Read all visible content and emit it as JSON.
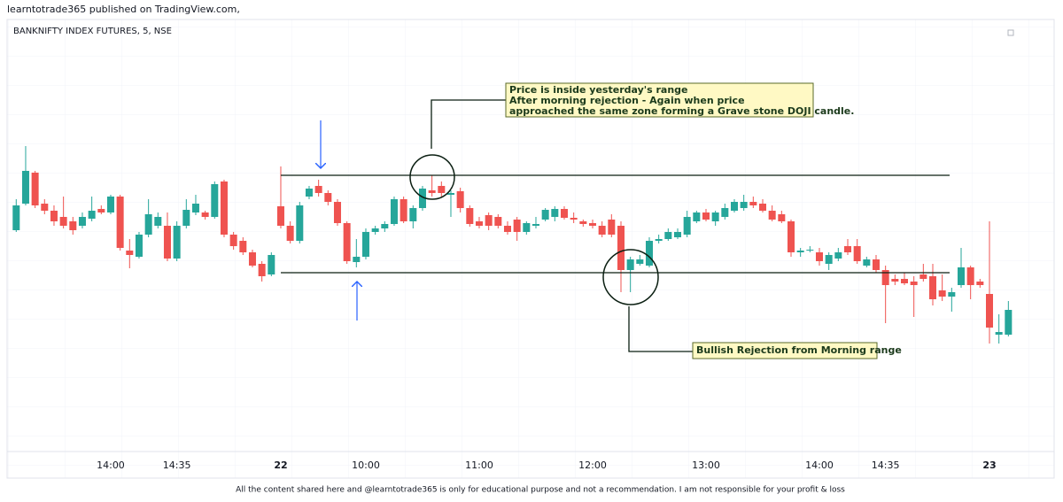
{
  "header": "learntotrade365 published on TradingView.com,",
  "footer": "All the content shared here and @learntotrade365 is only for educational purpose and not a recommendation. I am not responsible for your profit & loss",
  "chart_data": {
    "type": "candlestick",
    "title": "BANKNIFTY INDEX FUTURES, 5, NSE",
    "up_color": "#26a69a",
    "down_color": "#ef5350",
    "ylim": [
      -10,
      460
    ],
    "annotations": [
      [
        "Price is inside yesterday's range",
        "After morning rejection - Again when price",
        "approached the same zone forming a Grave stone DOJI candle."
      ],
      [
        "Bullish Rejection from Morning range"
      ]
    ],
    "categories": [
      null,
      null,
      null,
      null,
      null,
      null,
      null,
      null,
      null,
      null,
      "14:00",
      null,
      null,
      null,
      null,
      null,
      null,
      "14:35",
      null,
      null,
      null,
      null,
      null,
      null,
      null,
      null,
      null,
      null,
      "22",
      null,
      null,
      null,
      null,
      null,
      null,
      null,
      null,
      "10:00",
      null,
      null,
      null,
      null,
      null,
      null,
      null,
      null,
      null,
      null,
      null,
      "11:00",
      null,
      null,
      null,
      null,
      null,
      null,
      null,
      null,
      null,
      null,
      null,
      "12:00",
      null,
      null,
      null,
      null,
      null,
      null,
      null,
      null,
      null,
      null,
      null,
      "13:00",
      null,
      null,
      null,
      null,
      null,
      null,
      null,
      null,
      null,
      null,
      null,
      "14:00",
      null,
      null,
      null,
      null,
      null,
      null,
      "14:35",
      null,
      null,
      null,
      null,
      null,
      null,
      null,
      null,
      null,
      null,
      "23",
      null,
      null
    ],
    "open": [
      240,
      270,
      305,
      270,
      262,
      255,
      250,
      245,
      253,
      264,
      260,
      278,
      217,
      210,
      235,
      245,
      245,
      208,
      245,
      260,
      260,
      255,
      295,
      235,
      228,
      215,
      202,
      190,
      267,
      245,
      228,
      278,
      290,
      282,
      272,
      248,
      204,
      210,
      238,
      242,
      247,
      275,
      250,
      265,
      285,
      290,
      280,
      284,
      265,
      250,
      257,
      255,
      245,
      252,
      238,
      245,
      252,
      255,
      264,
      254,
      250,
      248,
      245,
      252,
      245,
      195,
      202,
      200,
      228,
      230,
      232,
      235,
      250,
      260,
      250,
      255,
      262,
      265,
      272,
      270,
      262,
      258,
      250,
      215,
      217,
      215,
      202,
      208,
      222,
      222,
      200,
      207,
      195,
      185,
      185,
      182,
      190,
      188,
      172,
      165,
      178,
      198,
      182,
      168,
      122,
      122
    ],
    "high": [
      275,
      335,
      307,
      275,
      268,
      278,
      255,
      260,
      278,
      268,
      280,
      280,
      230,
      238,
      275,
      260,
      260,
      250,
      275,
      280,
      262,
      295,
      297,
      238,
      232,
      218,
      205,
      215,
      312,
      250,
      272,
      290,
      297,
      285,
      275,
      250,
      230,
      242,
      245,
      250,
      278,
      278,
      268,
      290,
      302,
      295,
      285,
      288,
      268,
      255,
      260,
      258,
      250,
      255,
      250,
      255,
      265,
      267,
      267,
      260,
      252,
      252,
      250,
      258,
      250,
      210,
      212,
      232,
      235,
      242,
      242,
      262,
      262,
      264,
      262,
      270,
      275,
      280,
      278,
      275,
      268,
      262,
      252,
      220,
      222,
      220,
      215,
      220,
      230,
      230,
      210,
      212,
      200,
      190,
      192,
      188,
      202,
      202,
      190,
      175,
      220,
      200,
      185,
      250,
      145,
      160
    ],
    "low": [
      238,
      268,
      265,
      258,
      245,
      242,
      235,
      242,
      250,
      258,
      258,
      217,
      197,
      208,
      232,
      242,
      205,
      205,
      242,
      257,
      252,
      253,
      232,
      218,
      212,
      198,
      182,
      188,
      242,
      225,
      225,
      275,
      278,
      268,
      245,
      202,
      198,
      207,
      235,
      238,
      245,
      248,
      242,
      262,
      278,
      278,
      255,
      260,
      244,
      242,
      240,
      242,
      235,
      228,
      235,
      242,
      250,
      250,
      252,
      248,
      244,
      242,
      232,
      232,
      170,
      170,
      200,
      198,
      225,
      228,
      230,
      232,
      248,
      250,
      245,
      252,
      260,
      262,
      265,
      260,
      250,
      248,
      210,
      210,
      215,
      200,
      195,
      205,
      212,
      202,
      198,
      192,
      135,
      178,
      178,
      142,
      182,
      155,
      160,
      148,
      175,
      162,
      175,
      112,
      112,
      120
    ],
    "close": [
      268,
      307,
      268,
      262,
      250,
      245,
      240,
      255,
      262,
      260,
      278,
      220,
      212,
      235,
      258,
      255,
      208,
      245,
      263,
      270,
      255,
      292,
      235,
      222,
      215,
      200,
      188,
      212,
      245,
      228,
      268,
      287,
      282,
      272,
      248,
      205,
      210,
      238,
      242,
      247,
      275,
      250,
      265,
      287,
      282,
      282,
      282,
      265,
      247,
      245,
      245,
      245,
      238,
      238,
      248,
      247,
      263,
      264,
      254,
      252,
      247,
      245,
      235,
      235,
      195,
      207,
      207,
      228,
      230,
      238,
      238,
      255,
      260,
      252,
      260,
      265,
      272,
      272,
      268,
      262,
      252,
      250,
      215,
      217,
      218,
      205,
      212,
      215,
      215,
      205,
      207,
      195,
      178,
      182,
      180,
      178,
      185,
      162,
      165,
      170,
      198,
      178,
      178,
      130,
      125,
      150
    ]
  }
}
